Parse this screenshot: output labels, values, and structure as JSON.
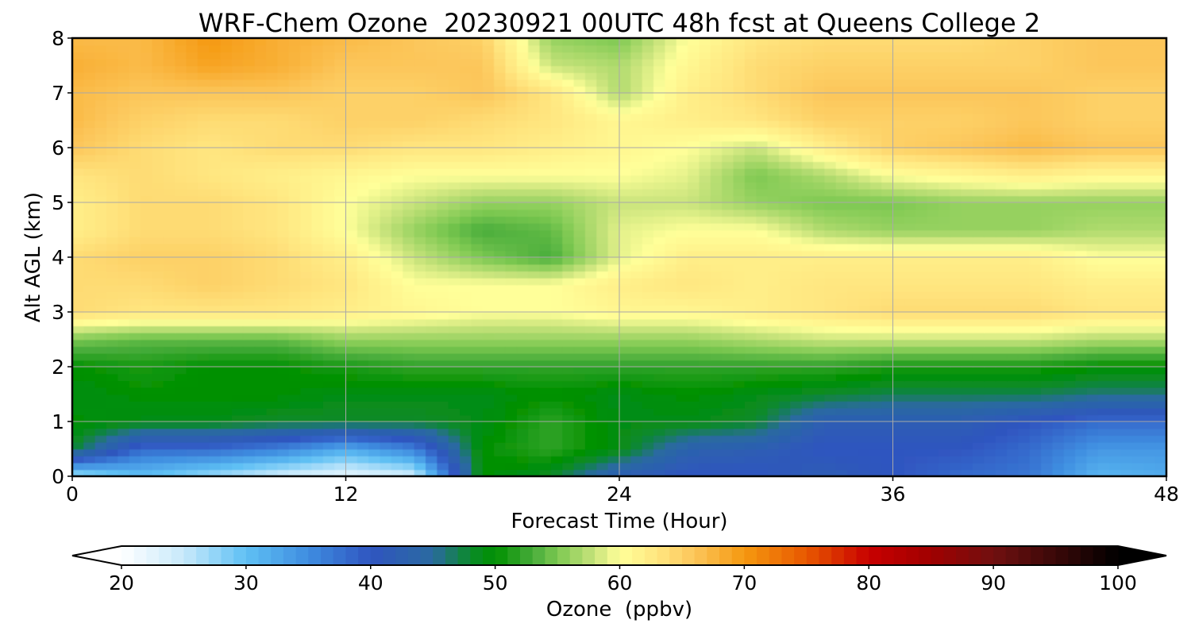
{
  "chart_data": {
    "type": "heatmap",
    "title": "WRF-Chem Ozone  20230921 00UTC 48h fcst at Queens College 2",
    "xlabel": "Forecast Time (Hour)",
    "ylabel": "Alt AGL (km)",
    "xlim": [
      0,
      48
    ],
    "ylim": [
      0,
      8
    ],
    "xticks": [
      0,
      12,
      24,
      36,
      48
    ],
    "yticks": [
      0,
      1,
      2,
      3,
      4,
      5,
      6,
      7,
      8
    ],
    "grid": true,
    "x": [
      0,
      3,
      6,
      9,
      12,
      15,
      18,
      21,
      24,
      27,
      30,
      33,
      36,
      39,
      42,
      45,
      48
    ],
    "y": [
      0,
      0.5,
      1,
      1.5,
      2,
      2.5,
      3,
      3.5,
      4,
      4.5,
      5,
      5.5,
      6,
      6.5,
      7,
      7.5,
      8
    ],
    "z": [
      [
        26,
        30,
        27,
        24,
        22,
        24,
        50,
        48,
        42,
        40,
        40,
        42,
        40,
        38,
        37,
        31,
        32
      ],
      [
        48,
        38,
        38,
        36,
        32,
        36,
        50,
        52,
        49,
        43,
        42,
        40,
        40,
        40,
        38,
        34,
        34
      ],
      [
        50,
        49,
        49,
        48,
        48,
        48,
        49,
        52,
        49,
        49,
        48,
        42,
        42,
        42,
        40,
        38,
        38
      ],
      [
        49,
        50,
        50,
        50,
        49,
        49,
        49,
        50,
        49,
        50,
        49,
        48,
        47,
        47,
        47,
        46,
        46
      ],
      [
        50,
        51,
        50,
        50,
        51,
        52,
        52,
        52,
        52,
        52,
        52,
        52,
        51,
        51,
        51,
        50,
        50
      ],
      [
        55,
        54,
        54,
        54,
        56,
        56,
        56,
        56,
        56,
        56,
        57,
        58,
        58,
        58,
        58,
        57,
        57
      ],
      [
        64,
        63,
        63,
        63,
        62,
        61,
        60,
        60,
        61,
        61,
        62,
        63,
        64,
        64,
        64,
        63,
        63
      ],
      [
        64,
        64,
        65,
        64,
        63,
        60,
        60,
        60,
        62,
        63,
        62,
        63,
        63,
        63,
        63,
        62,
        62
      ],
      [
        64,
        65,
        65,
        64,
        62,
        58,
        55,
        53,
        59,
        62,
        62,
        62,
        62,
        62,
        62,
        60,
        60
      ],
      [
        62,
        64,
        64,
        63,
        60,
        56,
        53,
        54,
        59,
        60,
        60,
        57,
        56,
        56,
        56,
        57,
        57
      ],
      [
        62,
        64,
        64,
        63,
        60,
        58,
        56,
        56,
        58,
        58,
        56,
        55,
        55,
        56,
        56,
        56,
        56
      ],
      [
        63,
        64,
        63,
        62,
        61,
        60,
        60,
        60,
        60,
        59,
        55,
        57,
        60,
        61,
        62,
        61,
        61
      ],
      [
        66,
        64,
        63,
        64,
        64,
        63,
        63,
        62,
        61,
        60,
        58,
        62,
        65,
        66,
        67,
        66,
        66
      ],
      [
        67,
        65,
        64,
        64,
        65,
        65,
        64,
        63,
        61,
        62,
        63,
        65,
        65,
        65,
        66,
        65,
        65
      ],
      [
        67,
        66,
        66,
        66,
        65,
        65,
        66,
        63,
        57,
        62,
        64,
        66,
        66,
        66,
        66,
        65,
        65
      ],
      [
        68,
        67,
        69,
        68,
        66,
        66,
        66,
        58,
        57,
        61,
        64,
        65,
        65,
        65,
        65,
        66,
        66
      ],
      [
        67,
        67,
        70,
        68,
        67,
        66,
        65,
        56,
        55,
        60,
        63,
        64,
        64,
        64,
        65,
        66,
        66
      ]
    ],
    "colorbar": {
      "label": "Ozone  (ppbv)",
      "min": 20,
      "max": 100,
      "ticks": [
        20,
        30,
        40,
        50,
        60,
        70,
        80,
        90,
        100
      ],
      "extend": "both",
      "stops": [
        [
          20,
          "#ffffff"
        ],
        [
          25,
          "#c7e9fb"
        ],
        [
          30,
          "#5fc0f4"
        ],
        [
          35,
          "#3f8de0"
        ],
        [
          40,
          "#2f55c0"
        ],
        [
          45,
          "#2a6aa0"
        ],
        [
          48,
          "#0b8a2a"
        ],
        [
          50,
          "#009000"
        ],
        [
          53,
          "#47ac3a"
        ],
        [
          55,
          "#7cc851"
        ],
        [
          58,
          "#c9e47c"
        ],
        [
          60,
          "#ffff99"
        ],
        [
          63,
          "#ffe680"
        ],
        [
          66,
          "#fcc65a"
        ],
        [
          70,
          "#f59810"
        ],
        [
          75,
          "#e85800"
        ],
        [
          80,
          "#c80000"
        ],
        [
          85,
          "#a00000"
        ],
        [
          90,
          "#701010"
        ],
        [
          95,
          "#3a0808"
        ],
        [
          100,
          "#000000"
        ]
      ]
    }
  }
}
